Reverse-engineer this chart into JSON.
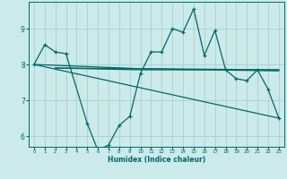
{
  "background_color": "#cceaea",
  "grid_color": "#aad4d4",
  "line_color": "#006868",
  "xlabel": "Humidex (Indice chaleur)",
  "ylim": [
    5.7,
    9.75
  ],
  "xlim": [
    -0.5,
    23.5
  ],
  "yticks": [
    6,
    7,
    8,
    9
  ],
  "xticks": [
    0,
    1,
    2,
    3,
    4,
    5,
    6,
    7,
    8,
    9,
    10,
    11,
    12,
    13,
    14,
    15,
    16,
    17,
    18,
    19,
    20,
    21,
    22,
    23
  ],
  "lines": [
    {
      "x": [
        0,
        1,
        2,
        3,
        5,
        6,
        7,
        8,
        9,
        10,
        11,
        12,
        13,
        14,
        15,
        16,
        17,
        18,
        19,
        20,
        21,
        22,
        23
      ],
      "y": [
        8.0,
        8.55,
        8.35,
        8.3,
        6.35,
        5.6,
        5.75,
        6.3,
        6.55,
        7.75,
        8.35,
        8.35,
        9.0,
        8.9,
        9.55,
        8.25,
        8.95,
        7.85,
        7.6,
        7.55,
        7.85,
        7.3,
        6.5
      ],
      "markers": true
    },
    {
      "x": [
        0,
        23
      ],
      "y": [
        8.0,
        6.5
      ],
      "markers": false
    },
    {
      "x": [
        2,
        23
      ],
      "y": [
        7.9,
        7.85
      ],
      "markers": false
    },
    {
      "x": [
        2,
        10,
        20,
        23
      ],
      "y": [
        7.9,
        7.85,
        7.85,
        7.85
      ],
      "markers": false
    },
    {
      "x": [
        0,
        10,
        23
      ],
      "y": [
        8.0,
        7.88,
        7.82
      ],
      "markers": false
    }
  ]
}
